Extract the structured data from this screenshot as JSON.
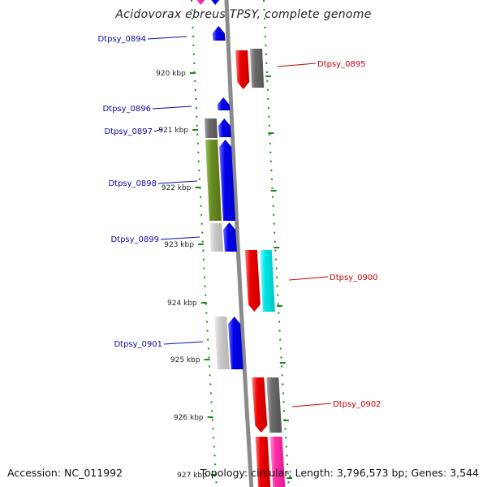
{
  "title": "Acidovorax ebreus TPSY, complete genome",
  "footer": {
    "accession": "Accession: NC_011992",
    "summary": "Topology: circular; Length: 3,796,573 bp; Genes: 3,544"
  },
  "colors": {
    "forward_label": "#0a0aa6",
    "reverse_label": "#cc0000",
    "backbone": "#8a8a8a",
    "tick": "#1a8a1a",
    "blue": "#0000ee",
    "red": "#ee0000",
    "gray": "#6a6a6a",
    "lightgray": "#c8c8c8",
    "olive": "#6b8e23",
    "cyan": "#00e5e5",
    "pink": "#ff2fa8"
  },
  "ticks": [
    {
      "label": "920 kbp"
    },
    {
      "label": "921 kbp"
    },
    {
      "label": "922 kbp"
    },
    {
      "label": "923 kbp"
    },
    {
      "label": "924 kbp"
    },
    {
      "label": "925 kbp"
    },
    {
      "label": "926 kbp"
    },
    {
      "label": "927 kbp"
    }
  ],
  "gene_labels": [
    {
      "name": "Dtpsy_0894",
      "strand": "forward"
    },
    {
      "name": "Dtpsy_0895",
      "strand": "reverse"
    },
    {
      "name": "Dtpsy_0896",
      "strand": "forward"
    },
    {
      "name": "Dtpsy_0897",
      "strand": "forward"
    },
    {
      "name": "Dtpsy_0898",
      "strand": "forward"
    },
    {
      "name": "Dtpsy_0899",
      "strand": "forward"
    },
    {
      "name": "Dtpsy_0900",
      "strand": "reverse"
    },
    {
      "name": "Dtpsy_0901",
      "strand": "forward"
    },
    {
      "name": "Dtpsy_0902",
      "strand": "reverse"
    }
  ]
}
